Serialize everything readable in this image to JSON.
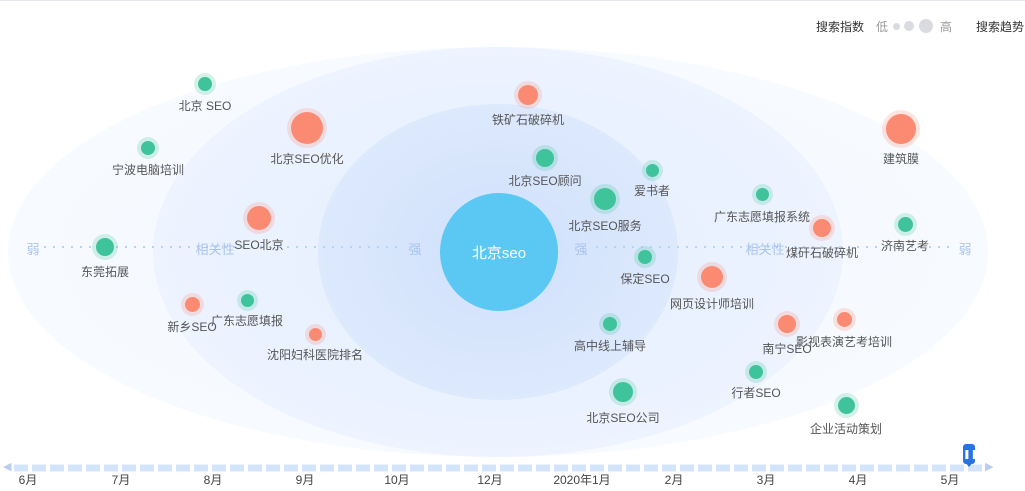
{
  "legend": {
    "search_index_label": "搜索指数",
    "low_label": "低",
    "high_label": "高",
    "search_trend_label": "搜索趋势"
  },
  "center_keyword": "北京seo",
  "axis": {
    "weak_left": "弱",
    "relevance_left": "相关性",
    "strong_left": "强",
    "strong_right": "强",
    "relevance_right": "相关性",
    "weak_right": "弱"
  },
  "keywords": [
    {
      "label": "北京 SEO",
      "color": "green"
    },
    {
      "label": "北京SEO优化",
      "color": "orange"
    },
    {
      "label": "宁波电脑培训",
      "color": "green"
    },
    {
      "label": "SEO北京",
      "color": "orange"
    },
    {
      "label": "东莞拓展",
      "color": "green"
    },
    {
      "label": "新乡SEO",
      "color": "orange"
    },
    {
      "label": "广东志愿填报",
      "color": "green"
    },
    {
      "label": "沈阳妇科医院排名",
      "color": "orange"
    },
    {
      "label": "铁矿石破碎机",
      "color": "orange"
    },
    {
      "label": "北京SEO顾问",
      "color": "green"
    },
    {
      "label": "爱书者",
      "color": "green"
    },
    {
      "label": "北京SEO服务",
      "color": "green"
    },
    {
      "label": "保定SEO",
      "color": "green"
    },
    {
      "label": "网页设计师培训",
      "color": "orange"
    },
    {
      "label": "高中线上辅导",
      "color": "green"
    },
    {
      "label": "北京SEO公司",
      "color": "green"
    },
    {
      "label": "建筑膜",
      "color": "orange"
    },
    {
      "label": "广东志愿填报系统",
      "color": "green"
    },
    {
      "label": "煤矸石破碎机",
      "color": "orange"
    },
    {
      "label": "济南艺考",
      "color": "green"
    },
    {
      "label": "南宁SEO",
      "color": "orange"
    },
    {
      "label": "影视表演艺考培训",
      "color": "orange"
    },
    {
      "label": "行者SEO",
      "color": "green"
    },
    {
      "label": "企业活动策划",
      "color": "green"
    }
  ],
  "timeline": {
    "ticks": [
      "6月",
      "7月",
      "8月",
      "9月",
      "10月",
      "12月",
      "2020年1月",
      "2月",
      "3月",
      "4月",
      "5月"
    ],
    "handle_icon": "pause-icon"
  },
  "colors": {
    "green": "#3fc39a",
    "orange": "#fb8a72",
    "center": "#5ac8f3",
    "axis_text": "#a9c4ee"
  }
}
